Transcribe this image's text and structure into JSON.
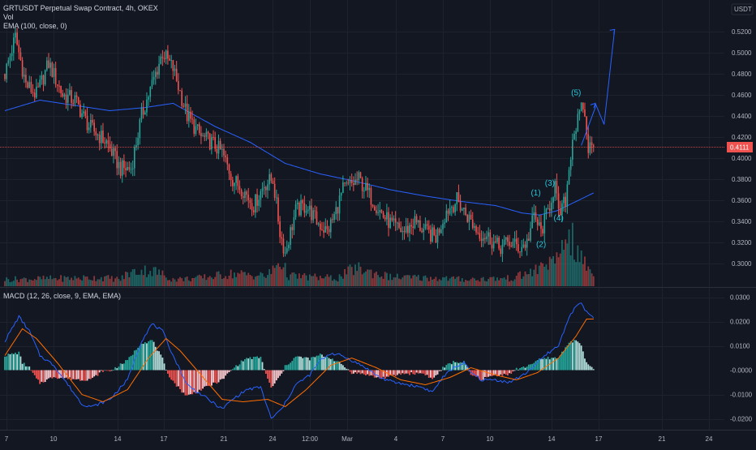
{
  "colors": {
    "background": "#131722",
    "grid": "#1e222d",
    "up": "#26a69a",
    "down": "#ef5350",
    "ema": "#2962ff",
    "macd_line": "#2962ff",
    "signal_line": "#ff6d00",
    "hist_pos_strong": "#26a69a",
    "hist_pos_weak": "#b2dfdb",
    "hist_neg_strong": "#ef5350",
    "hist_neg_weak": "#ffcdd2",
    "price_line": "#ef5350",
    "projection": "#2962ff",
    "wave_label": "#26c6da"
  },
  "header": {
    "title": "GRTUSDT Perpetual Swap Contract, 4h, OKEX",
    "vol_label": "Vol",
    "ema_label": "EMA (100, close, 0)",
    "macd_label": "MACD (12, 26, close, 9, EMA, EMA)",
    "currency": "USDT"
  },
  "chart_data": [
    {
      "type": "candlestick",
      "title": "GRTUSDT Perpetual Swap Contract, 4h, OKEX",
      "timeframe": "4h",
      "x_tick_labels": [
        "7",
        "10",
        "14",
        "17",
        "21",
        "24",
        "12:00",
        "Mar",
        "4",
        "7",
        "10",
        "14",
        "17",
        "21",
        "24"
      ],
      "y_tick_labels": [
        "0.5200",
        "0.5000",
        "0.4800",
        "0.4600",
        "0.4400",
        "0.4200",
        "0.4000",
        "0.3800",
        "0.3600",
        "0.3400",
        "0.3200",
        "0.3000"
      ],
      "ylim": [
        0.286,
        0.53
      ],
      "last_price": 0.4111,
      "last_price_label": "0.4111",
      "ohlc_keypoints": [
        [
          0,
          0.48
        ],
        [
          6,
          0.515
        ],
        [
          12,
          0.47
        ],
        [
          18,
          0.46
        ],
        [
          25,
          0.49
        ],
        [
          33,
          0.46
        ],
        [
          40,
          0.455
        ],
        [
          48,
          0.43
        ],
        [
          58,
          0.415
        ],
        [
          66,
          0.39
        ],
        [
          72,
          0.39
        ],
        [
          78,
          0.44
        ],
        [
          84,
          0.47
        ],
        [
          90,
          0.5
        ],
        [
          96,
          0.485
        ],
        [
          104,
          0.44
        ],
        [
          112,
          0.42
        ],
        [
          118,
          0.415
        ],
        [
          124,
          0.405
        ],
        [
          130,
          0.38
        ],
        [
          136,
          0.37
        ],
        [
          142,
          0.355
        ],
        [
          148,
          0.375
        ],
        [
          153,
          0.38
        ],
        [
          157,
          0.33
        ],
        [
          160,
          0.31
        ],
        [
          166,
          0.35
        ],
        [
          172,
          0.355
        ],
        [
          178,
          0.34
        ],
        [
          184,
          0.33
        ],
        [
          188,
          0.345
        ],
        [
          193,
          0.37
        ],
        [
          198,
          0.375
        ],
        [
          202,
          0.38
        ],
        [
          206,
          0.37
        ],
        [
          210,
          0.36
        ],
        [
          216,
          0.345
        ],
        [
          222,
          0.335
        ],
        [
          228,
          0.33
        ],
        [
          234,
          0.34
        ],
        [
          240,
          0.33
        ],
        [
          246,
          0.325
        ],
        [
          252,
          0.35
        ],
        [
          258,
          0.36
        ],
        [
          264,
          0.345
        ],
        [
          270,
          0.33
        ],
        [
          276,
          0.325
        ],
        [
          282,
          0.315
        ],
        [
          288,
          0.32
        ],
        [
          294,
          0.315
        ],
        [
          298,
          0.32
        ],
        [
          302,
          0.345
        ],
        [
          306,
          0.33
        ],
        [
          310,
          0.35
        ],
        [
          314,
          0.375
        ],
        [
          316,
          0.345
        ],
        [
          320,
          0.36
        ],
        [
          324,
          0.42
        ],
        [
          328,
          0.44
        ],
        [
          330,
          0.45
        ],
        [
          333,
          0.41
        ],
        [
          336,
          0.41
        ]
      ],
      "volume_profile": [
        [
          0,
          0.12
        ],
        [
          56,
          0.15
        ],
        [
          66,
          0.12
        ],
        [
          70,
          0.22
        ],
        [
          78,
          0.28
        ],
        [
          86,
          0.26
        ],
        [
          96,
          0.12
        ],
        [
          110,
          0.14
        ],
        [
          130,
          0.22
        ],
        [
          150,
          0.18
        ],
        [
          157,
          0.45
        ],
        [
          162,
          0.18
        ],
        [
          190,
          0.14
        ],
        [
          200,
          0.32
        ],
        [
          220,
          0.16
        ],
        [
          250,
          0.14
        ],
        [
          262,
          0.12
        ],
        [
          290,
          0.14
        ],
        [
          305,
          0.3
        ],
        [
          310,
          0.45
        ],
        [
          314,
          0.35
        ],
        [
          318,
          0.7
        ],
        [
          322,
          1.0
        ],
        [
          326,
          0.55
        ],
        [
          330,
          0.45
        ],
        [
          336,
          0.2
        ]
      ],
      "ema100": [
        [
          0,
          0.445
        ],
        [
          20,
          0.455
        ],
        [
          40,
          0.45
        ],
        [
          60,
          0.445
        ],
        [
          80,
          0.448
        ],
        [
          96,
          0.452
        ],
        [
          120,
          0.43
        ],
        [
          140,
          0.415
        ],
        [
          160,
          0.395
        ],
        [
          180,
          0.385
        ],
        [
          200,
          0.378
        ],
        [
          220,
          0.37
        ],
        [
          240,
          0.364
        ],
        [
          260,
          0.359
        ],
        [
          280,
          0.355
        ],
        [
          295,
          0.348
        ],
        [
          305,
          0.346
        ],
        [
          315,
          0.35
        ],
        [
          325,
          0.358
        ],
        [
          336,
          0.367
        ]
      ],
      "elliott_waves": [
        {
          "label": "(1)",
          "bar": 303,
          "price": 0.367
        },
        {
          "label": "(2)",
          "bar": 306,
          "price": 0.318
        },
        {
          "label": "(3)",
          "bar": 311,
          "price": 0.376
        },
        {
          "label": "(4)",
          "bar": 316,
          "price": 0.343
        },
        {
          "label": "(5)",
          "bar": 326,
          "price": 0.462
        }
      ],
      "projection": [
        [
          329,
          0.412
        ],
        [
          337,
          0.448
        ],
        [
          337,
          0.452
        ],
        [
          342,
          0.432
        ],
        [
          348,
          0.522
        ]
      ]
    },
    {
      "type": "macd",
      "title": "MACD (12, 26, close, 9, EMA, EMA)",
      "y_tick_labels": [
        "0.0300",
        "0.0200",
        "0.0100",
        "-0.0000",
        "-0.0100",
        "-0.0200"
      ],
      "ylim": [
        -0.0222,
        0.031
      ],
      "macd_keypoints": [
        [
          0,
          0.012
        ],
        [
          8,
          0.022
        ],
        [
          14,
          0.016
        ],
        [
          20,
          0.006
        ],
        [
          28,
          0.002
        ],
        [
          36,
          -0.006
        ],
        [
          44,
          -0.014
        ],
        [
          50,
          -0.015
        ],
        [
          60,
          -0.012
        ],
        [
          70,
          -0.004
        ],
        [
          78,
          0.012
        ],
        [
          84,
          0.019
        ],
        [
          90,
          0.016
        ],
        [
          96,
          0.006
        ],
        [
          104,
          -0.006
        ],
        [
          112,
          -0.01
        ],
        [
          118,
          -0.013
        ],
        [
          124,
          -0.016
        ],
        [
          130,
          -0.012
        ],
        [
          138,
          -0.008
        ],
        [
          146,
          -0.007
        ],
        [
          152,
          -0.02
        ],
        [
          158,
          -0.016
        ],
        [
          166,
          -0.006
        ],
        [
          174,
          -0.002
        ],
        [
          180,
          0.004
        ],
        [
          186,
          0.007
        ],
        [
          192,
          0.006
        ],
        [
          198,
          0.004
        ],
        [
          206,
          0.001
        ],
        [
          214,
          -0.003
        ],
        [
          222,
          -0.005
        ],
        [
          230,
          -0.006
        ],
        [
          238,
          -0.007
        ],
        [
          244,
          -0.009
        ],
        [
          250,
          -0.003
        ],
        [
          256,
          0.001
        ],
        [
          262,
          0.003
        ],
        [
          266,
          -0.001
        ],
        [
          272,
          -0.004
        ],
        [
          280,
          -0.004
        ],
        [
          288,
          -0.005
        ],
        [
          296,
          -0.002
        ],
        [
          304,
          0.003
        ],
        [
          310,
          0.007
        ],
        [
          316,
          0.01
        ],
        [
          322,
          0.022
        ],
        [
          328,
          0.028
        ],
        [
          332,
          0.024
        ],
        [
          336,
          0.021
        ]
      ],
      "signal_keypoints": [
        [
          0,
          0.006
        ],
        [
          10,
          0.017
        ],
        [
          18,
          0.013
        ],
        [
          30,
          0.003
        ],
        [
          44,
          -0.01
        ],
        [
          56,
          -0.013
        ],
        [
          70,
          -0.008
        ],
        [
          82,
          0.005
        ],
        [
          92,
          0.013
        ],
        [
          100,
          0.008
        ],
        [
          112,
          -0.002
        ],
        [
          124,
          -0.012
        ],
        [
          136,
          -0.013
        ],
        [
          150,
          -0.012
        ],
        [
          160,
          -0.015
        ],
        [
          172,
          -0.008
        ],
        [
          186,
          0.002
        ],
        [
          198,
          0.005
        ],
        [
          212,
          0.001
        ],
        [
          226,
          -0.004
        ],
        [
          240,
          -0.006
        ],
        [
          254,
          -0.003
        ],
        [
          266,
          0.001
        ],
        [
          280,
          -0.002
        ],
        [
          292,
          -0.004
        ],
        [
          304,
          -0.001
        ],
        [
          316,
          0.005
        ],
        [
          326,
          0.014
        ],
        [
          332,
          0.021
        ],
        [
          336,
          0.021
        ]
      ]
    }
  ]
}
